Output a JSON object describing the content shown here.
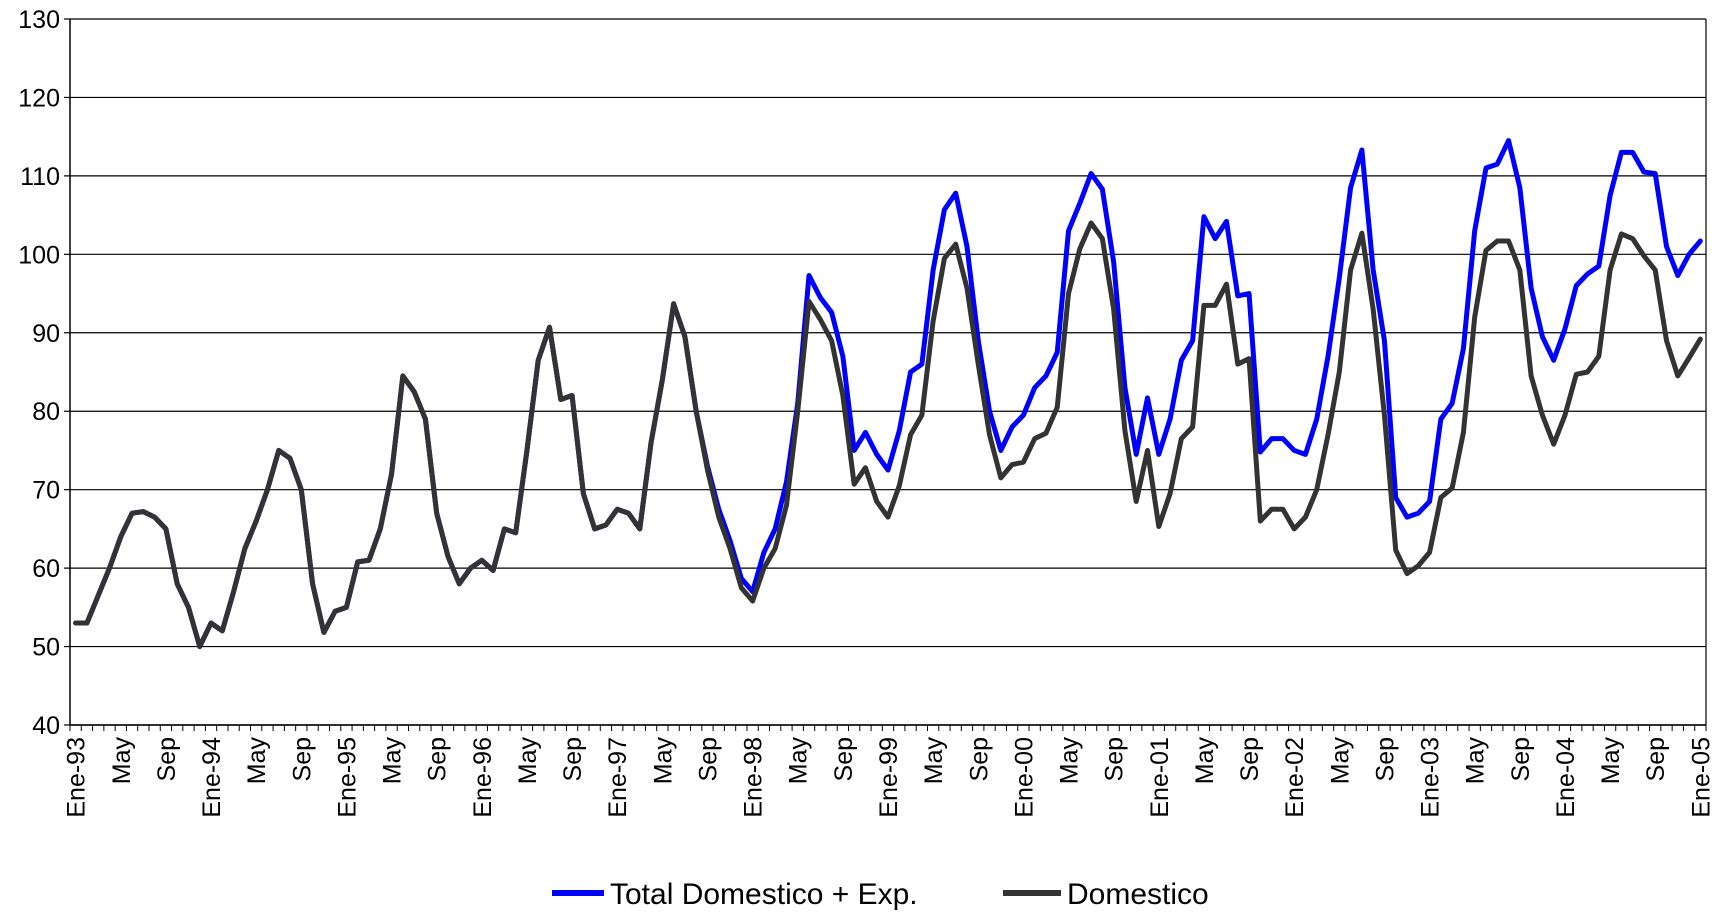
{
  "colors": {
    "total": "#0000ff",
    "domestic": "#333333",
    "grid": "#000000"
  },
  "chart_data": {
    "type": "line",
    "ylim": [
      40,
      130
    ],
    "yticks": [
      40,
      50,
      60,
      70,
      80,
      90,
      100,
      110,
      120,
      130
    ],
    "grid": "horizontal",
    "legend_position": "bottom-center",
    "xtick_labels": [
      "Ene-93",
      "May",
      "Sep",
      "Ene-94",
      "May",
      "Sep",
      "Ene-95",
      "May",
      "Sep",
      "Ene-96",
      "May",
      "Sep",
      "Ene-97",
      "May",
      "Sep",
      "Ene-98",
      "May",
      "Sep",
      "Ene-99",
      "May",
      "Sep",
      "Ene-00",
      "May",
      "Sep",
      "Ene-01",
      "May",
      "Sep",
      "Ene-02",
      "May",
      "Sep",
      "Ene-03",
      "May",
      "Sep",
      "Ene-04",
      "May",
      "Sep",
      "Ene-05"
    ],
    "series": [
      {
        "name": "Total Domestico + Exp.",
        "values": [
          53,
          53,
          56.5,
          60,
          64,
          67,
          67.2,
          66.5,
          65,
          58,
          55,
          50,
          53,
          52,
          57,
          62.5,
          66,
          70,
          75,
          74,
          70,
          58,
          51.8,
          54.5,
          55,
          60.8,
          61,
          65,
          72,
          84.5,
          82.5,
          79,
          67,
          61.5,
          58,
          60,
          61,
          59.7,
          65,
          64.5,
          75,
          86.5,
          90.7,
          81.5,
          82,
          69.5,
          65,
          65.5,
          67.5,
          67,
          65,
          76,
          84,
          93.7,
          89.5,
          80,
          73,
          67.5,
          63.5,
          58.7,
          57,
          62,
          65,
          71,
          81,
          97.3,
          94.5,
          92.6,
          87,
          75,
          77.3,
          74.5,
          72.5,
          77.5,
          85,
          86,
          98,
          105.7,
          107.8,
          101,
          89,
          80,
          75,
          78,
          79.5,
          83,
          84.5,
          87.5,
          103,
          106.5,
          110.3,
          108.3,
          99,
          83,
          74.5,
          81.7,
          74.5,
          79,
          86.5,
          89,
          104.8,
          102,
          104.2,
          94.7,
          95,
          74.8,
          76.5,
          76.5,
          75,
          74.5,
          79,
          87,
          97,
          108.5,
          113.3,
          98,
          89,
          69,
          66.5,
          67,
          68.5,
          79,
          81,
          88,
          103,
          111,
          111.5,
          114.5,
          108.5,
          95.7,
          89.5,
          86.5,
          90.5,
          96,
          97.5,
          98.5,
          107.5,
          113,
          113,
          110.5,
          110.3,
          101,
          97.3,
          100,
          101.7
        ]
      },
      {
        "name": "Domestico",
        "values": [
          53,
          53,
          56.5,
          60,
          64,
          67,
          67.2,
          66.5,
          65,
          58,
          55,
          50,
          53,
          52,
          57,
          62.5,
          66,
          70,
          75,
          74,
          70,
          58,
          51.8,
          54.5,
          55,
          60.8,
          61,
          65,
          72,
          84.5,
          82.5,
          79,
          67,
          61.5,
          58,
          60,
          61,
          59.7,
          65,
          64.5,
          75,
          86.5,
          90.7,
          81.5,
          82,
          69.5,
          65,
          65.5,
          67.5,
          67,
          65,
          76,
          84,
          93.7,
          89.5,
          80,
          72.5,
          66.5,
          62.5,
          57.5,
          55.8,
          60,
          62.5,
          68,
          80,
          94,
          91.7,
          89,
          82,
          70.7,
          72.8,
          68.5,
          66.5,
          70.5,
          77,
          79.5,
          91.5,
          99.5,
          101.3,
          95.7,
          86,
          77,
          71.5,
          73.2,
          73.5,
          76.5,
          77.2,
          80.5,
          95,
          100.7,
          104,
          102,
          93,
          77.5,
          68.5,
          75,
          65.3,
          69.5,
          76.5,
          78,
          93.5,
          93.5,
          96.2,
          86,
          86.7,
          66,
          67.5,
          67.5,
          65,
          66.5,
          70,
          77,
          85,
          98,
          102.7,
          93,
          79.5,
          62.3,
          59.3,
          60.3,
          62,
          69,
          70.2,
          77.3,
          92,
          100.5,
          101.7,
          101.7,
          98,
          84.5,
          79.5,
          75.8,
          79.5,
          84.7,
          85,
          87,
          98,
          102.6,
          102,
          99.8,
          98,
          89,
          84.5,
          86.8,
          89.2
        ]
      }
    ]
  }
}
